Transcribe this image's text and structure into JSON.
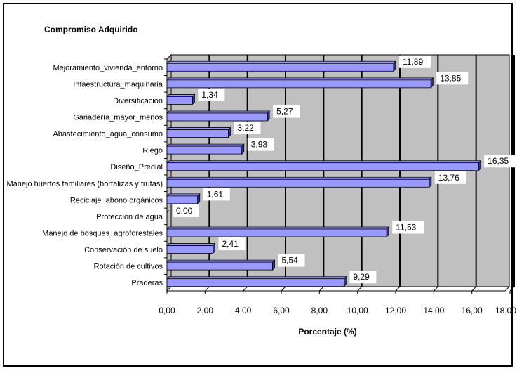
{
  "chart_data": {
    "type": "bar",
    "orientation": "horizontal",
    "title": "Compromiso Adquirido",
    "xlabel": "Porcentaje (%)",
    "ylabel": "",
    "xlim": [
      0,
      18
    ],
    "xticks": [
      "0,00",
      "2,00",
      "4,00",
      "6,00",
      "8,00",
      "10,00",
      "12,00",
      "14,00",
      "16,00",
      "18,00"
    ],
    "grid": true,
    "legend": "none",
    "colors": {
      "bar": "#9999ff",
      "bar_shadow": "#33338a",
      "plot_bg": "#c0c0c0",
      "plot_wall": "#ffffff"
    },
    "categories": [
      "Mejoramiento_vivienda_entorno",
      "Infaestructura_maquinaria",
      "Diversificación",
      "Ganadería_mayor_menos",
      "Abastecimiento_agua_consumo",
      "Riego",
      "Diseño_Predial",
      "Manejo huertos familiares (hortalizas y frutas)",
      "Reciclaje_abono orgánicos",
      "Protección de agua",
      "Manejo de bosques_agroforestales",
      "Conservación de suelo",
      "Rotación de cultivos",
      "Praderas"
    ],
    "values": [
      11.89,
      13.85,
      1.34,
      5.27,
      3.22,
      3.93,
      16.35,
      13.76,
      1.61,
      0.0,
      11.53,
      2.41,
      5.54,
      9.29
    ],
    "value_labels": [
      "11,89",
      "13,85",
      "1,34",
      "5,27",
      "3,22",
      "3,93",
      "16,35",
      "13,76",
      "1,61",
      "0,00",
      "11,53",
      "2,41",
      "5,54",
      "9,29"
    ]
  }
}
